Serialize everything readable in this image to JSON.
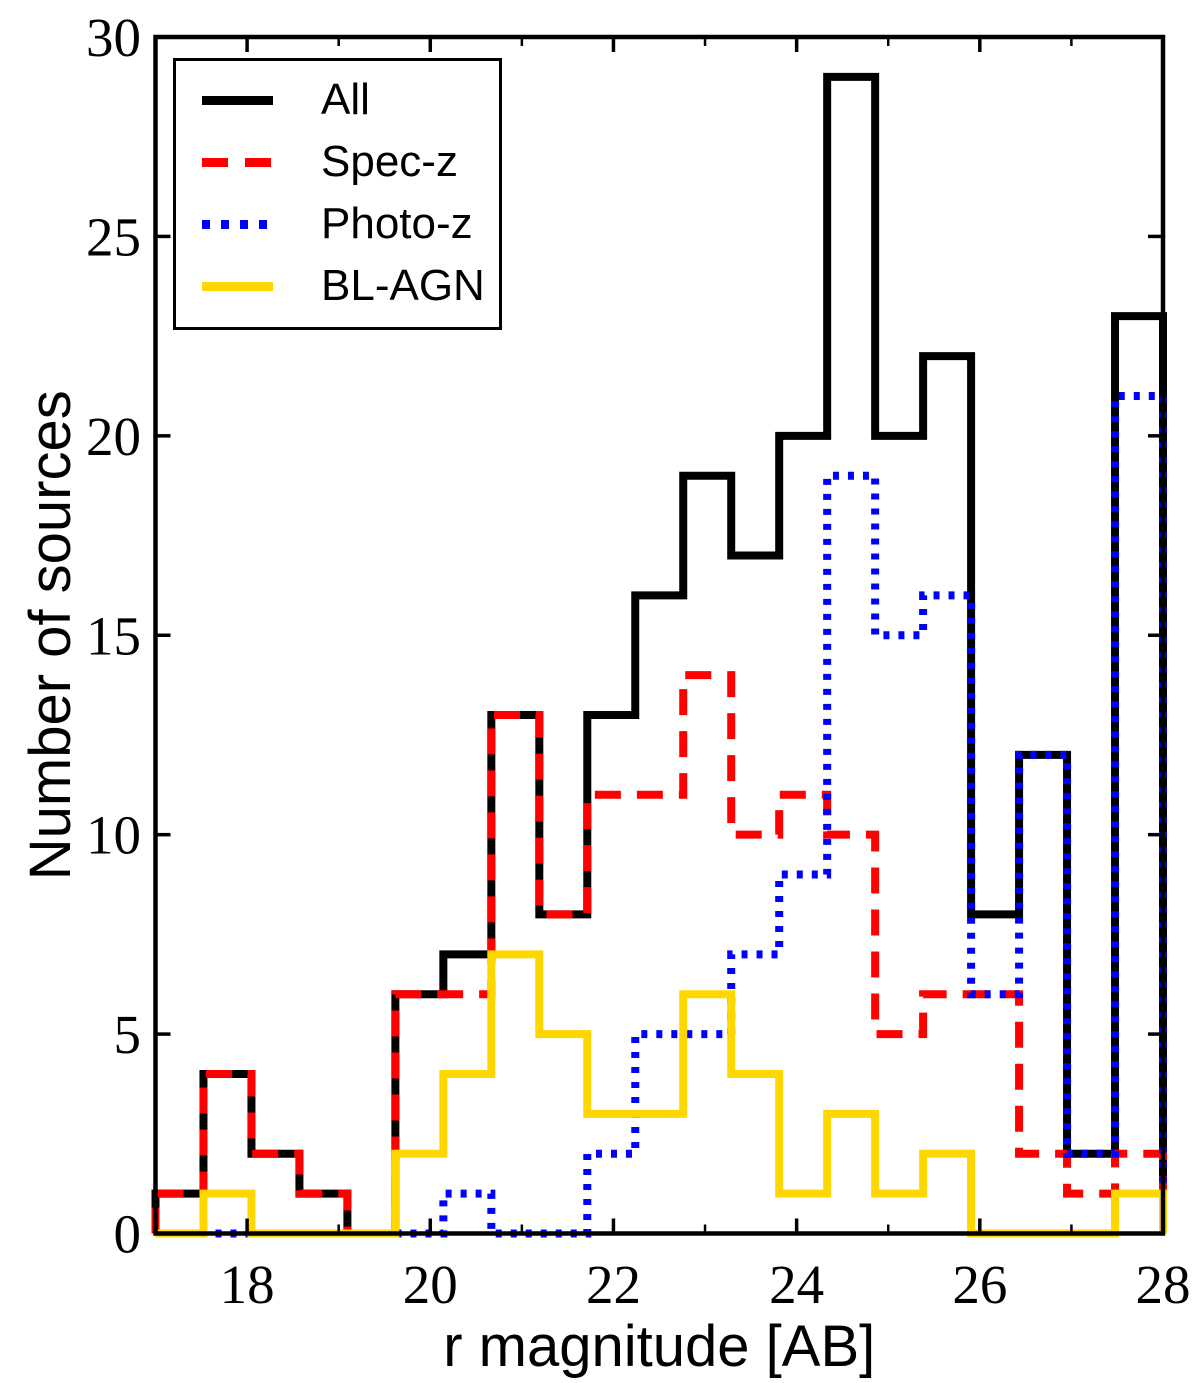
{
  "figure": {
    "background_color": "#ffffff"
  },
  "chart_data": {
    "type": "histogram-step",
    "title": "",
    "xlabel": "r magnitude [AB]",
    "ylabel": "Number of sources",
    "xlim": [
      17,
      28
    ],
    "ylim": [
      0,
      30
    ],
    "grid": false,
    "legend_position": "upper-left",
    "bins": {
      "start": 17,
      "end": 28,
      "count": 21
    },
    "x_major_ticks": [
      18,
      20,
      22,
      24,
      26,
      28
    ],
    "x_minor_ticks": [
      19,
      21,
      23,
      25,
      27
    ],
    "y_major_ticks": [
      0,
      5,
      10,
      15,
      20,
      25,
      30
    ],
    "x_tick_labels": [
      "18",
      "20",
      "22",
      "24",
      "26",
      "28"
    ],
    "y_tick_labels": [
      "0",
      "5",
      "10",
      "15",
      "20",
      "25",
      "30"
    ],
    "series": [
      {
        "name": "All",
        "color": "#000000",
        "line_style": "solid",
        "values": [
          1,
          4,
          2,
          1,
          0,
          6,
          7,
          13,
          8,
          13,
          16,
          19,
          17,
          20,
          29,
          20,
          22,
          8,
          12,
          2,
          23
        ]
      },
      {
        "name": "Spec-z",
        "color": "#ff0000",
        "line_style": "dashed",
        "values": [
          1,
          4,
          2,
          1,
          0,
          6,
          6,
          13,
          8,
          11,
          11,
          14,
          10,
          11,
          10,
          5,
          6,
          6,
          2,
          1,
          2
        ]
      },
      {
        "name": "Photo-z",
        "color": "#0000ff",
        "line_style": "dotted",
        "values": [
          0,
          0,
          0,
          0,
          0,
          0,
          1,
          0,
          0,
          2,
          5,
          5,
          7,
          9,
          19,
          15,
          16,
          6,
          12,
          2,
          21
        ]
      },
      {
        "name": "BL-AGN",
        "color": "#ffd700",
        "line_style": "solid",
        "values": [
          0,
          1,
          0,
          0,
          0,
          2,
          4,
          7,
          5,
          3,
          3,
          6,
          4,
          1,
          3,
          1,
          2,
          0,
          0,
          0,
          1
        ]
      }
    ]
  }
}
